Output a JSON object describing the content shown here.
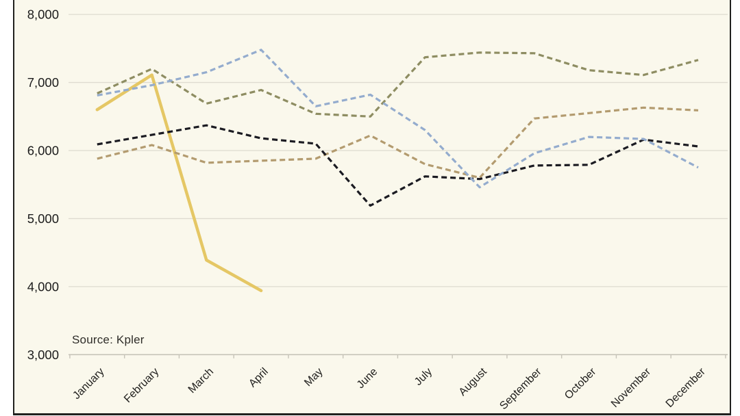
{
  "source_note": "Source: Kpler",
  "colors": {
    "chart_background": "#faf8ec",
    "frame_border": "#20201e",
    "gridline": "#dedbd0",
    "axis_line": "#c6c3b8",
    "tick_label": "#1c1c1c",
    "month_label": "#21201e"
  },
  "chart_data": {
    "type": "line",
    "title": "",
    "xlabel": "",
    "ylabel": "",
    "ylim": [
      3000,
      8000
    ],
    "grid": true,
    "legend_position": "none",
    "x_categories": [
      "January",
      "February",
      "March",
      "April",
      "May",
      "June",
      "July",
      "August",
      "September",
      "October",
      "November",
      "December"
    ],
    "y_ticks": [
      {
        "label": "8,000",
        "value": 8000
      },
      {
        "label": "7,000",
        "value": 7000
      },
      {
        "label": "6,000",
        "value": 6000
      },
      {
        "label": "5,000",
        "value": 5000
      },
      {
        "label": "4,000",
        "value": 4000
      },
      {
        "label": "3,000",
        "value": 3000
      }
    ],
    "series": [
      {
        "name": "gold-solid-line",
        "color": "#e5c765",
        "style": "solid",
        "stroke_width": 4.5,
        "values": [
          6600,
          7110,
          4390,
          3940,
          null,
          null,
          null,
          null,
          null,
          null,
          null,
          null
        ]
      },
      {
        "name": "tan-dashed-line",
        "color": "#b39b6f",
        "style": "dashed",
        "stroke_width": 3.2,
        "values": [
          5880,
          6080,
          5820,
          5850,
          5880,
          6220,
          5800,
          5600,
          6470,
          6550,
          6630,
          6590
        ]
      },
      {
        "name": "navy-dashed-line",
        "color": "#1b1b22",
        "style": "dashed",
        "stroke_width": 3.2,
        "values": [
          6090,
          6230,
          6370,
          6180,
          6100,
          5190,
          5620,
          5580,
          5780,
          5790,
          6160,
          6060
        ]
      },
      {
        "name": "olive-dashed-line",
        "color": "#8e8d62",
        "style": "dashed",
        "stroke_width": 3.2,
        "values": [
          6840,
          7200,
          6690,
          6890,
          6540,
          6500,
          7370,
          7440,
          7430,
          7180,
          7110,
          7330
        ]
      },
      {
        "name": "blue-dashed-line",
        "color": "#94acce",
        "style": "dashed",
        "stroke_width": 3.2,
        "values": [
          6810,
          6960,
          7150,
          7480,
          6650,
          6820,
          6300,
          5460,
          5960,
          6200,
          6170,
          5750
        ]
      }
    ]
  }
}
